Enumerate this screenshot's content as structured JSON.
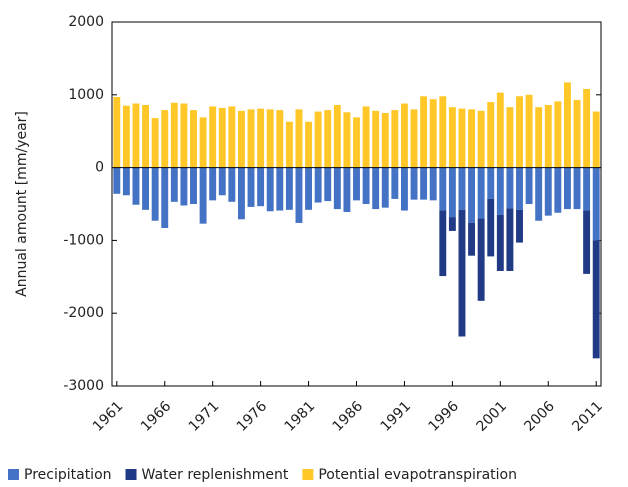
{
  "chart_data": {
    "type": "bar",
    "y_label": "Annual amount [mm/year]",
    "categories": [
      "1961",
      null,
      null,
      null,
      null,
      "1966",
      null,
      null,
      null,
      null,
      "1971",
      null,
      null,
      null,
      null,
      "1976",
      null,
      null,
      null,
      null,
      "1981",
      null,
      null,
      null,
      null,
      "1986",
      null,
      null,
      null,
      null,
      "1991",
      null,
      null,
      null,
      null,
      "1996",
      null,
      null,
      null,
      null,
      "2001",
      null,
      null,
      null,
      null,
      "2006",
      null,
      null,
      null,
      null,
      "2011"
    ],
    "series": [
      {
        "name": "Precipitation",
        "color": "#4472c4",
        "values": [
          -360,
          -380,
          -510,
          -580,
          -730,
          -830,
          -470,
          -520,
          -500,
          -770,
          -450,
          -380,
          -470,
          -710,
          -540,
          -530,
          -600,
          -590,
          -580,
          -760,
          -580,
          -480,
          -460,
          -570,
          -610,
          -450,
          -500,
          -570,
          -550,
          -430,
          -590,
          -440,
          -440,
          -450,
          -590,
          -680,
          -580,
          -760,
          -700,
          -430,
          -650,
          -560,
          -580,
          -500,
          -730,
          -660,
          -620,
          -570,
          -570,
          -590,
          -1000
        ]
      },
      {
        "name": "Water replenishment",
        "color": "#203a86",
        "values": [
          0,
          0,
          0,
          0,
          0,
          0,
          0,
          0,
          0,
          0,
          0,
          0,
          0,
          0,
          0,
          0,
          0,
          0,
          0,
          0,
          0,
          0,
          0,
          0,
          0,
          0,
          0,
          0,
          0,
          0,
          0,
          0,
          0,
          0,
          -900,
          -190,
          -1740,
          -450,
          -1130,
          -790,
          -770,
          -860,
          -450,
          0,
          0,
          0,
          0,
          0,
          0,
          -870,
          -1620
        ]
      },
      {
        "name": "Potential evapotranspiration",
        "color": "#ffc828",
        "values": [
          970,
          850,
          880,
          860,
          680,
          790,
          890,
          880,
          790,
          690,
          840,
          820,
          840,
          780,
          800,
          810,
          800,
          790,
          630,
          800,
          630,
          770,
          790,
          860,
          760,
          690,
          840,
          780,
          750,
          790,
          880,
          800,
          980,
          940,
          980,
          830,
          810,
          800,
          780,
          900,
          1030,
          830,
          980,
          1000,
          830,
          860,
          910,
          1170,
          930,
          1080,
          770
        ]
      }
    ],
    "stacked": true,
    "ylim": [
      -3000,
      2000
    ],
    "yticks": [
      -3000,
      -2000,
      -1000,
      0,
      1000,
      2000
    ]
  }
}
